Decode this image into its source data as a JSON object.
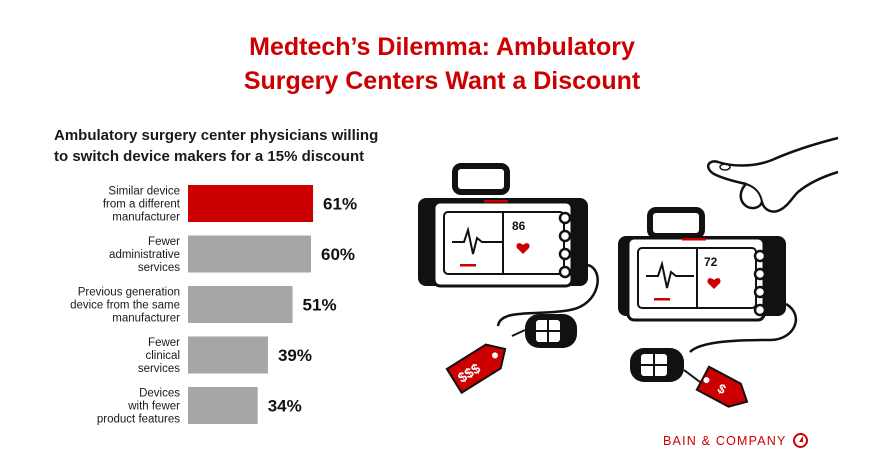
{
  "title": {
    "line1": "Medtech’s Dilemma: Ambulatory",
    "line2": "Surgery Centers Want a Discount"
  },
  "brand": "BAIN & COMPANY",
  "colors": {
    "accent": "#cc0000",
    "bar_gray": "#a6a6a6",
    "text": "#1a1a1a"
  },
  "icons": [
    "patient-monitor-icon",
    "price-tag-icon",
    "hand-pointing-icon",
    "bain-logo-icon"
  ],
  "art": {
    "monitor_left_value": "86",
    "monitor_right_value": "72",
    "tag_left": "$$$",
    "tag_right": "$"
  },
  "chart_data": {
    "type": "bar",
    "orientation": "horizontal",
    "title": "Ambulatory surgery center physicians willing to switch device makers for a 15% discount",
    "title_lines": [
      "Ambulatory surgery center physicians willing",
      "to switch device makers for a 15% discount"
    ],
    "categories": [
      [
        "Similar device",
        "from a different",
        "manufacturer"
      ],
      [
        "Fewer",
        "administrative",
        "services"
      ],
      [
        "Previous generation",
        "device from the same",
        "manufacturer"
      ],
      [
        "Fewer",
        "clinical",
        "services"
      ],
      [
        "Devices",
        "with fewer",
        "product features"
      ]
    ],
    "values": [
      61,
      60,
      51,
      39,
      34
    ],
    "value_labels": [
      "61%",
      "60%",
      "51%",
      "39%",
      "34%"
    ],
    "highlight_index": 0,
    "xlim": [
      0,
      100
    ],
    "grid": false,
    "legend": "none"
  }
}
